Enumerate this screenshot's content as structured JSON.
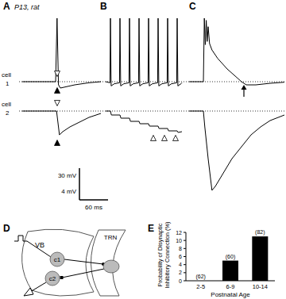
{
  "chart_data": {
    "type": "bar",
    "categories": [
      "2-5",
      "6-9",
      "10-14"
    ],
    "values": [
      0,
      5,
      11
    ],
    "sample_size_labels": [
      "(62)",
      "(60)",
      "(82)"
    ],
    "xlabel": "Postnatal Age",
    "ylabel": [
      "Probability of Disynaptic",
      "Inhibitory Connection (%)"
    ],
    "ylim": [
      0,
      12
    ],
    "yticks": [
      0,
      2,
      4,
      6,
      8,
      10,
      12
    ],
    "color": "#000000",
    "grid": false
  },
  "traces": {
    "cell_labels": [
      [
        "cell",
        "1"
      ],
      [
        "cell",
        "2"
      ]
    ],
    "scale_bars": {
      "vertical": [
        {
          "value": 30,
          "label": "30 mV"
        },
        {
          "value": 4,
          "label": "4 mV"
        }
      ],
      "horizontal": {
        "value": 60,
        "label": "60 ms"
      }
    },
    "panels": [
      {
        "label": "A",
        "note": "P13, rat",
        "cell1": {
          "t": [
            0,
            70,
            73,
            76,
            80,
            90,
            110,
            140,
            165
          ],
          "v": [
            0,
            0,
            60,
            -3,
            -6,
            -5,
            -3,
            -1,
            0
          ]
        },
        "cell2": {
          "t": [
            0,
            72,
            74,
            78,
            85,
            100,
            120,
            140,
            165
          ],
          "v": [
            0,
            0,
            -1,
            -3,
            -2.6,
            -2,
            -1.4,
            -0.8,
            -0.3
          ]
        }
      },
      {
        "label": "B",
        "cell1": {
          "t": [
            0,
            9,
            10,
            11.5,
            18,
            29,
            30,
            31.5,
            38,
            49,
            50,
            51.5,
            58,
            69,
            70,
            71.5,
            78,
            89,
            90,
            91.5,
            98,
            109,
            110,
            111.5,
            118,
            129,
            130,
            131.5,
            138,
            149,
            150,
            151.5,
            158,
            160
          ],
          "v": [
            0,
            -1,
            60,
            -4,
            -2,
            -1,
            60,
            -4,
            -2,
            -1,
            60,
            -4,
            -2,
            -1,
            60,
            -4,
            -2,
            -1,
            60,
            -4,
            -2,
            -1,
            60,
            -4,
            -2,
            -1,
            60,
            -4,
            -2,
            -1,
            60,
            -4,
            -2,
            -1
          ]
        },
        "cell2": {
          "t": [
            0,
            10,
            12,
            30,
            32,
            50,
            52,
            70,
            72,
            90,
            92,
            110,
            112,
            130,
            132,
            150,
            152,
            160
          ],
          "v": [
            0,
            0,
            -0.5,
            -0.5,
            -0.9,
            -0.9,
            -1.3,
            -1.3,
            -1.6,
            -1.6,
            -1.9,
            -1.9,
            -2.2,
            -2.2,
            -2.5,
            -2.5,
            -2.7,
            -2.6
          ]
        }
      },
      {
        "label": "C",
        "cell1": {
          "t": [
            0,
            30,
            32,
            34,
            36,
            38,
            40,
            43,
            48,
            60,
            80,
            100,
            110,
            120,
            140,
            170,
            200
          ],
          "v": [
            0,
            0,
            60,
            35,
            58,
            38,
            52,
            36,
            30,
            22,
            12,
            4,
            0,
            -3,
            -3,
            -1.5,
            -0.5
          ]
        },
        "cell2": {
          "t": [
            0,
            30,
            33,
            40,
            48,
            55,
            70,
            90,
            110,
            130,
            150,
            170,
            200
          ],
          "v": [
            0,
            0,
            -2,
            -6,
            -10,
            -9.5,
            -8,
            -6,
            -4.5,
            -3,
            -2,
            -1.2,
            -0.5
          ]
        }
      }
    ]
  },
  "diagram": {
    "label": "D",
    "regions": [
      "VB",
      "TRN"
    ],
    "cells": [
      "c1",
      "c2"
    ]
  },
  "panel_e": {
    "label": "E"
  }
}
